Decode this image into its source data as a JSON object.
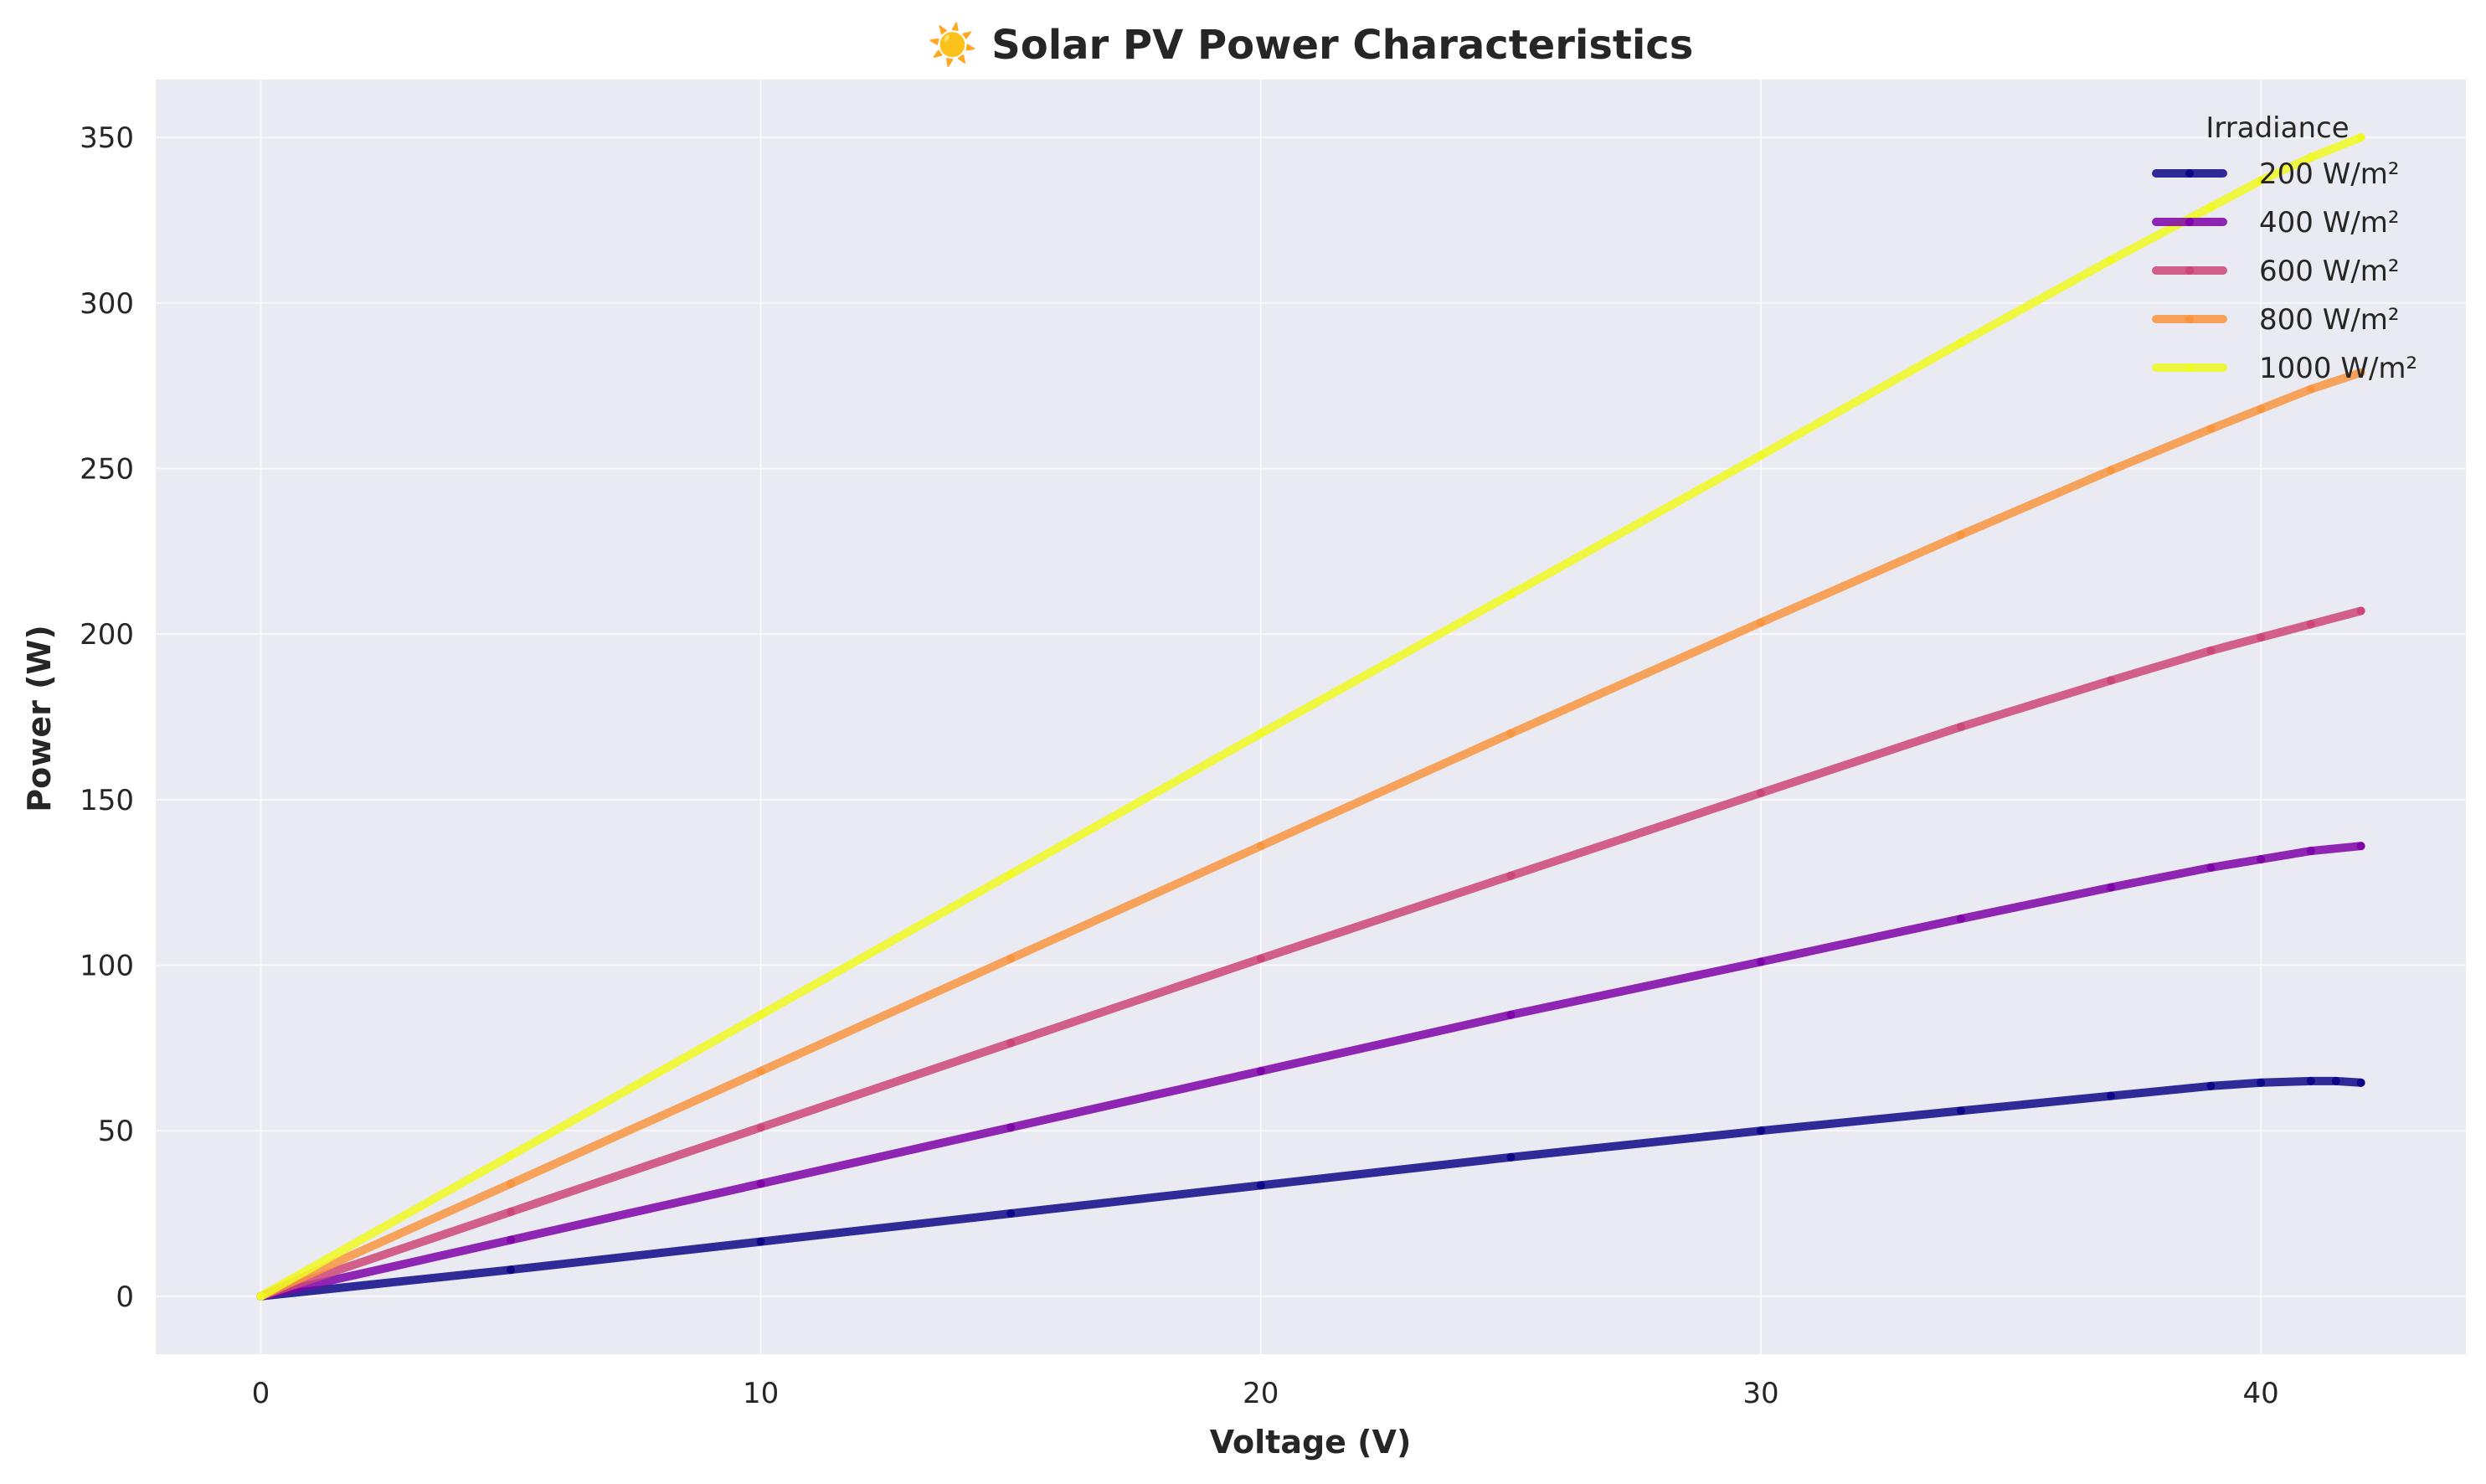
{
  "chart_data": {
    "type": "line",
    "title": "☀️ Solar PV Power Characteristics",
    "xlabel": "Voltage (V)",
    "ylabel": "Power (W)",
    "xlim": [
      -2.1,
      44.1
    ],
    "ylim": [
      -17.5,
      367.5
    ],
    "xticks": [
      0,
      10,
      20,
      30,
      40
    ],
    "yticks": [
      0,
      50,
      100,
      150,
      200,
      250,
      300,
      350
    ],
    "grid": true,
    "legend": {
      "title": "Irradiance",
      "placement": "top-right"
    },
    "background": "#eaeaf2",
    "series": [
      {
        "name": "200 W/m²",
        "color": "#0d0887",
        "points": [
          [
            0,
            0
          ],
          [
            5,
            8
          ],
          [
            10,
            16.5
          ],
          [
            15,
            25
          ],
          [
            20,
            33.5
          ],
          [
            25,
            42
          ],
          [
            30,
            50
          ],
          [
            34,
            56
          ],
          [
            37,
            60.5
          ],
          [
            39,
            63.5
          ],
          [
            40,
            64.5
          ],
          [
            41,
            65
          ],
          [
            41.5,
            65
          ],
          [
            42,
            64.5
          ]
        ]
      },
      {
        "name": "400 W/m²",
        "color": "#7e03a8",
        "points": [
          [
            0,
            0
          ],
          [
            5,
            17
          ],
          [
            10,
            34
          ],
          [
            15,
            51
          ],
          [
            20,
            68
          ],
          [
            25,
            85
          ],
          [
            30,
            101
          ],
          [
            34,
            114
          ],
          [
            37,
            123.5
          ],
          [
            39,
            129.5
          ],
          [
            40,
            132
          ],
          [
            41,
            134.5
          ],
          [
            42,
            136
          ]
        ]
      },
      {
        "name": "600 W/m²",
        "color": "#cc4778",
        "points": [
          [
            0,
            0
          ],
          [
            5,
            25.5
          ],
          [
            10,
            51
          ],
          [
            15,
            76.5
          ],
          [
            20,
            102
          ],
          [
            25,
            127
          ],
          [
            30,
            152
          ],
          [
            34,
            172
          ],
          [
            37,
            186
          ],
          [
            39,
            195
          ],
          [
            40,
            199
          ],
          [
            41,
            203
          ],
          [
            42,
            207
          ]
        ]
      },
      {
        "name": "800 W/m²",
        "color": "#f89540",
        "points": [
          [
            0,
            0
          ],
          [
            5,
            34
          ],
          [
            10,
            68
          ],
          [
            15,
            102
          ],
          [
            20,
            136
          ],
          [
            25,
            170
          ],
          [
            30,
            203.5
          ],
          [
            34,
            230
          ],
          [
            37,
            249.5
          ],
          [
            39,
            262
          ],
          [
            40,
            268
          ],
          [
            41,
            274
          ],
          [
            42,
            279
          ]
        ]
      },
      {
        "name": "1000 W/m²",
        "color": "#f0f921",
        "points": [
          [
            0,
            0
          ],
          [
            5,
            42.5
          ],
          [
            10,
            85
          ],
          [
            15,
            127.5
          ],
          [
            20,
            170
          ],
          [
            25,
            212
          ],
          [
            30,
            254
          ],
          [
            34,
            288
          ],
          [
            37,
            313
          ],
          [
            39,
            329
          ],
          [
            40,
            337
          ],
          [
            41,
            344
          ],
          [
            42,
            350
          ]
        ]
      }
    ]
  }
}
